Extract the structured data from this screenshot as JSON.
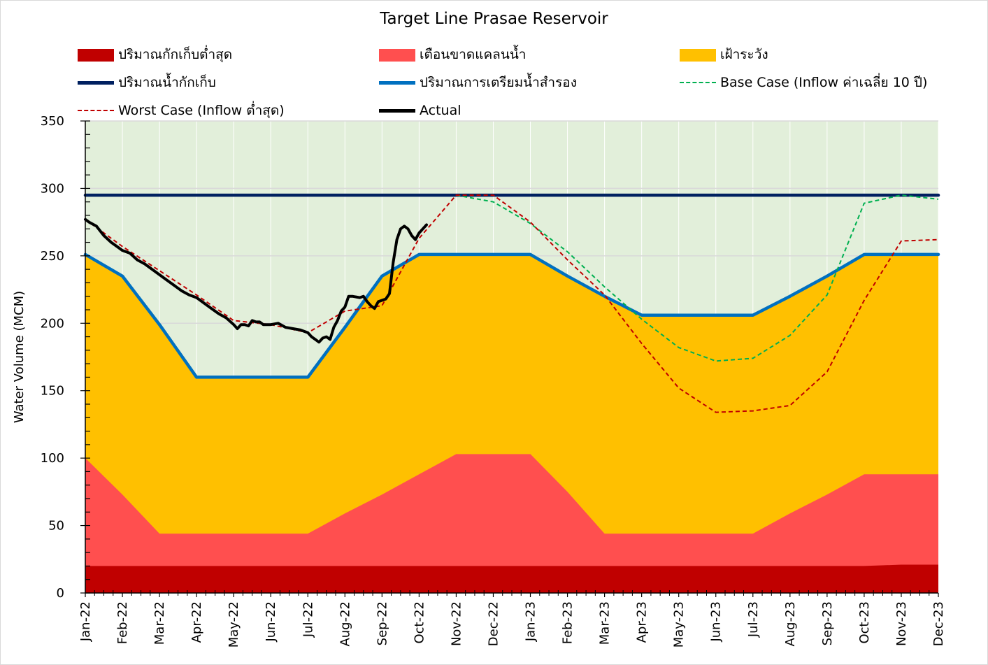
{
  "chart_data": {
    "type": "area",
    "title": "Target Line Prasae Reservoir",
    "ylabel": "Water Volume (MCM)",
    "xlabel": "",
    "ylim": [
      0,
      350
    ],
    "yticks": [
      0,
      50,
      100,
      150,
      200,
      250,
      300,
      350
    ],
    "grid": true,
    "legend_position": "top",
    "categories": [
      "Jan-22",
      "Feb-22",
      "Mar-22",
      "Apr-22",
      "May-22",
      "Jun-22",
      "Jul-22",
      "Aug-22",
      "Sep-22",
      "Oct-22",
      "Nov-22",
      "Dec-22",
      "Jan-23",
      "Feb-23",
      "Mar-23",
      "Apr-23",
      "May-23",
      "Jun-23",
      "Jul-23",
      "Aug-23",
      "Sep-23",
      "Oct-23",
      "Nov-23",
      "Dec-23"
    ],
    "series": [
      {
        "name": "ปริมาณกักเก็บต่ำสุด",
        "kind": "area",
        "color": "#c00000",
        "values": [
          20,
          20,
          20,
          20,
          20,
          20,
          20,
          20,
          20,
          20,
          20,
          20,
          20,
          20,
          20,
          20,
          20,
          20,
          20,
          20,
          20,
          20,
          21,
          21
        ]
      },
      {
        "name": "เตือนขาดแคลนน้ำ",
        "kind": "area",
        "color": "#ff4f4f",
        "values": [
          100,
          73,
          44,
          44,
          44,
          44,
          44,
          59,
          73,
          88,
          103,
          103,
          103,
          75,
          44,
          44,
          44,
          44,
          44,
          59,
          73,
          88,
          88,
          88
        ]
      },
      {
        "name": "เฝ้าระวัง",
        "kind": "area",
        "color": "#ffc000",
        "values": [
          251,
          235,
          199,
          160,
          160,
          160,
          160,
          197,
          235,
          251,
          251,
          251,
          251,
          235,
          220,
          206,
          206,
          206,
          206,
          220,
          235,
          251,
          251,
          251
        ]
      },
      {
        "name": "ปริมาณน้ำกักเก็บ",
        "kind": "line",
        "color": "#002060",
        "dash": "",
        "values": [
          295,
          295,
          295,
          295,
          295,
          295,
          295,
          295,
          295,
          295,
          295,
          295,
          295,
          295,
          295,
          295,
          295,
          295,
          295,
          295,
          295,
          295,
          295,
          295
        ]
      },
      {
        "name": "ปริมาณการเตรียมน้ำสำรอง",
        "kind": "line",
        "color": "#0070c0",
        "dash": "",
        "values": [
          251,
          235,
          199,
          160,
          160,
          160,
          160,
          197,
          235,
          251,
          251,
          251,
          251,
          235,
          220,
          206,
          206,
          206,
          206,
          220,
          235,
          251,
          251,
          251
        ]
      },
      {
        "name": "Base Case (Inflow ค่าเฉลี่ย 10 ปี)",
        "kind": "line",
        "color": "#00b050",
        "dash": "6,4",
        "values": [
          null,
          null,
          null,
          null,
          null,
          null,
          null,
          null,
          null,
          null,
          295,
          290,
          274,
          253,
          227,
          203,
          182,
          172,
          174,
          191,
          221,
          289,
          295,
          292
        ]
      },
      {
        "name": "Worst Case (Inflow ต่ำสุด)",
        "kind": "line",
        "color": "#c00000",
        "dash": "6,4",
        "values": [
          277,
          257,
          239,
          221,
          202,
          199,
          193,
          209,
          213,
          263,
          295,
          295,
          275,
          247,
          221,
          185,
          152,
          134,
          135,
          139,
          164,
          217,
          261,
          262
        ]
      },
      {
        "name": "Actual",
        "kind": "line",
        "color": "#000000",
        "dash": "",
        "x": [
          0,
          0.1,
          0.3,
          0.5,
          0.7,
          0.9,
          1.0,
          1.2,
          1.4,
          1.6,
          1.8,
          2.0,
          2.2,
          2.4,
          2.6,
          2.8,
          3.0,
          3.2,
          3.4,
          3.6,
          3.8,
          4.0,
          4.1,
          4.2,
          4.3,
          4.4,
          4.5,
          4.6,
          4.7,
          4.8,
          4.9,
          5.0,
          5.2,
          5.4,
          5.6,
          5.8,
          6.0,
          6.1,
          6.2,
          6.3,
          6.4,
          6.5,
          6.6,
          6.7,
          6.8,
          6.9,
          7.0,
          7.1,
          7.2,
          7.4,
          7.5,
          7.6,
          7.7,
          7.8,
          7.9,
          8.0,
          8.1,
          8.2,
          8.3,
          8.4,
          8.5,
          8.6,
          8.7,
          8.8,
          8.9,
          9.0,
          9.1,
          9.2
        ],
        "values": [
          277,
          275,
          272,
          265,
          260,
          256,
          254,
          252,
          247,
          244,
          240,
          236,
          232,
          228,
          224,
          221,
          219,
          215,
          211,
          207,
          204,
          199,
          196,
          199,
          199,
          198,
          202,
          201,
          201,
          199,
          199,
          199,
          200,
          197,
          196,
          195,
          193,
          190,
          188,
          186,
          189,
          190,
          188,
          197,
          202,
          209,
          212,
          220,
          220,
          219,
          220,
          216,
          213,
          211,
          216,
          217,
          218,
          222,
          245,
          262,
          270,
          272,
          270,
          265,
          262,
          267,
          270,
          273
        ]
      }
    ]
  }
}
